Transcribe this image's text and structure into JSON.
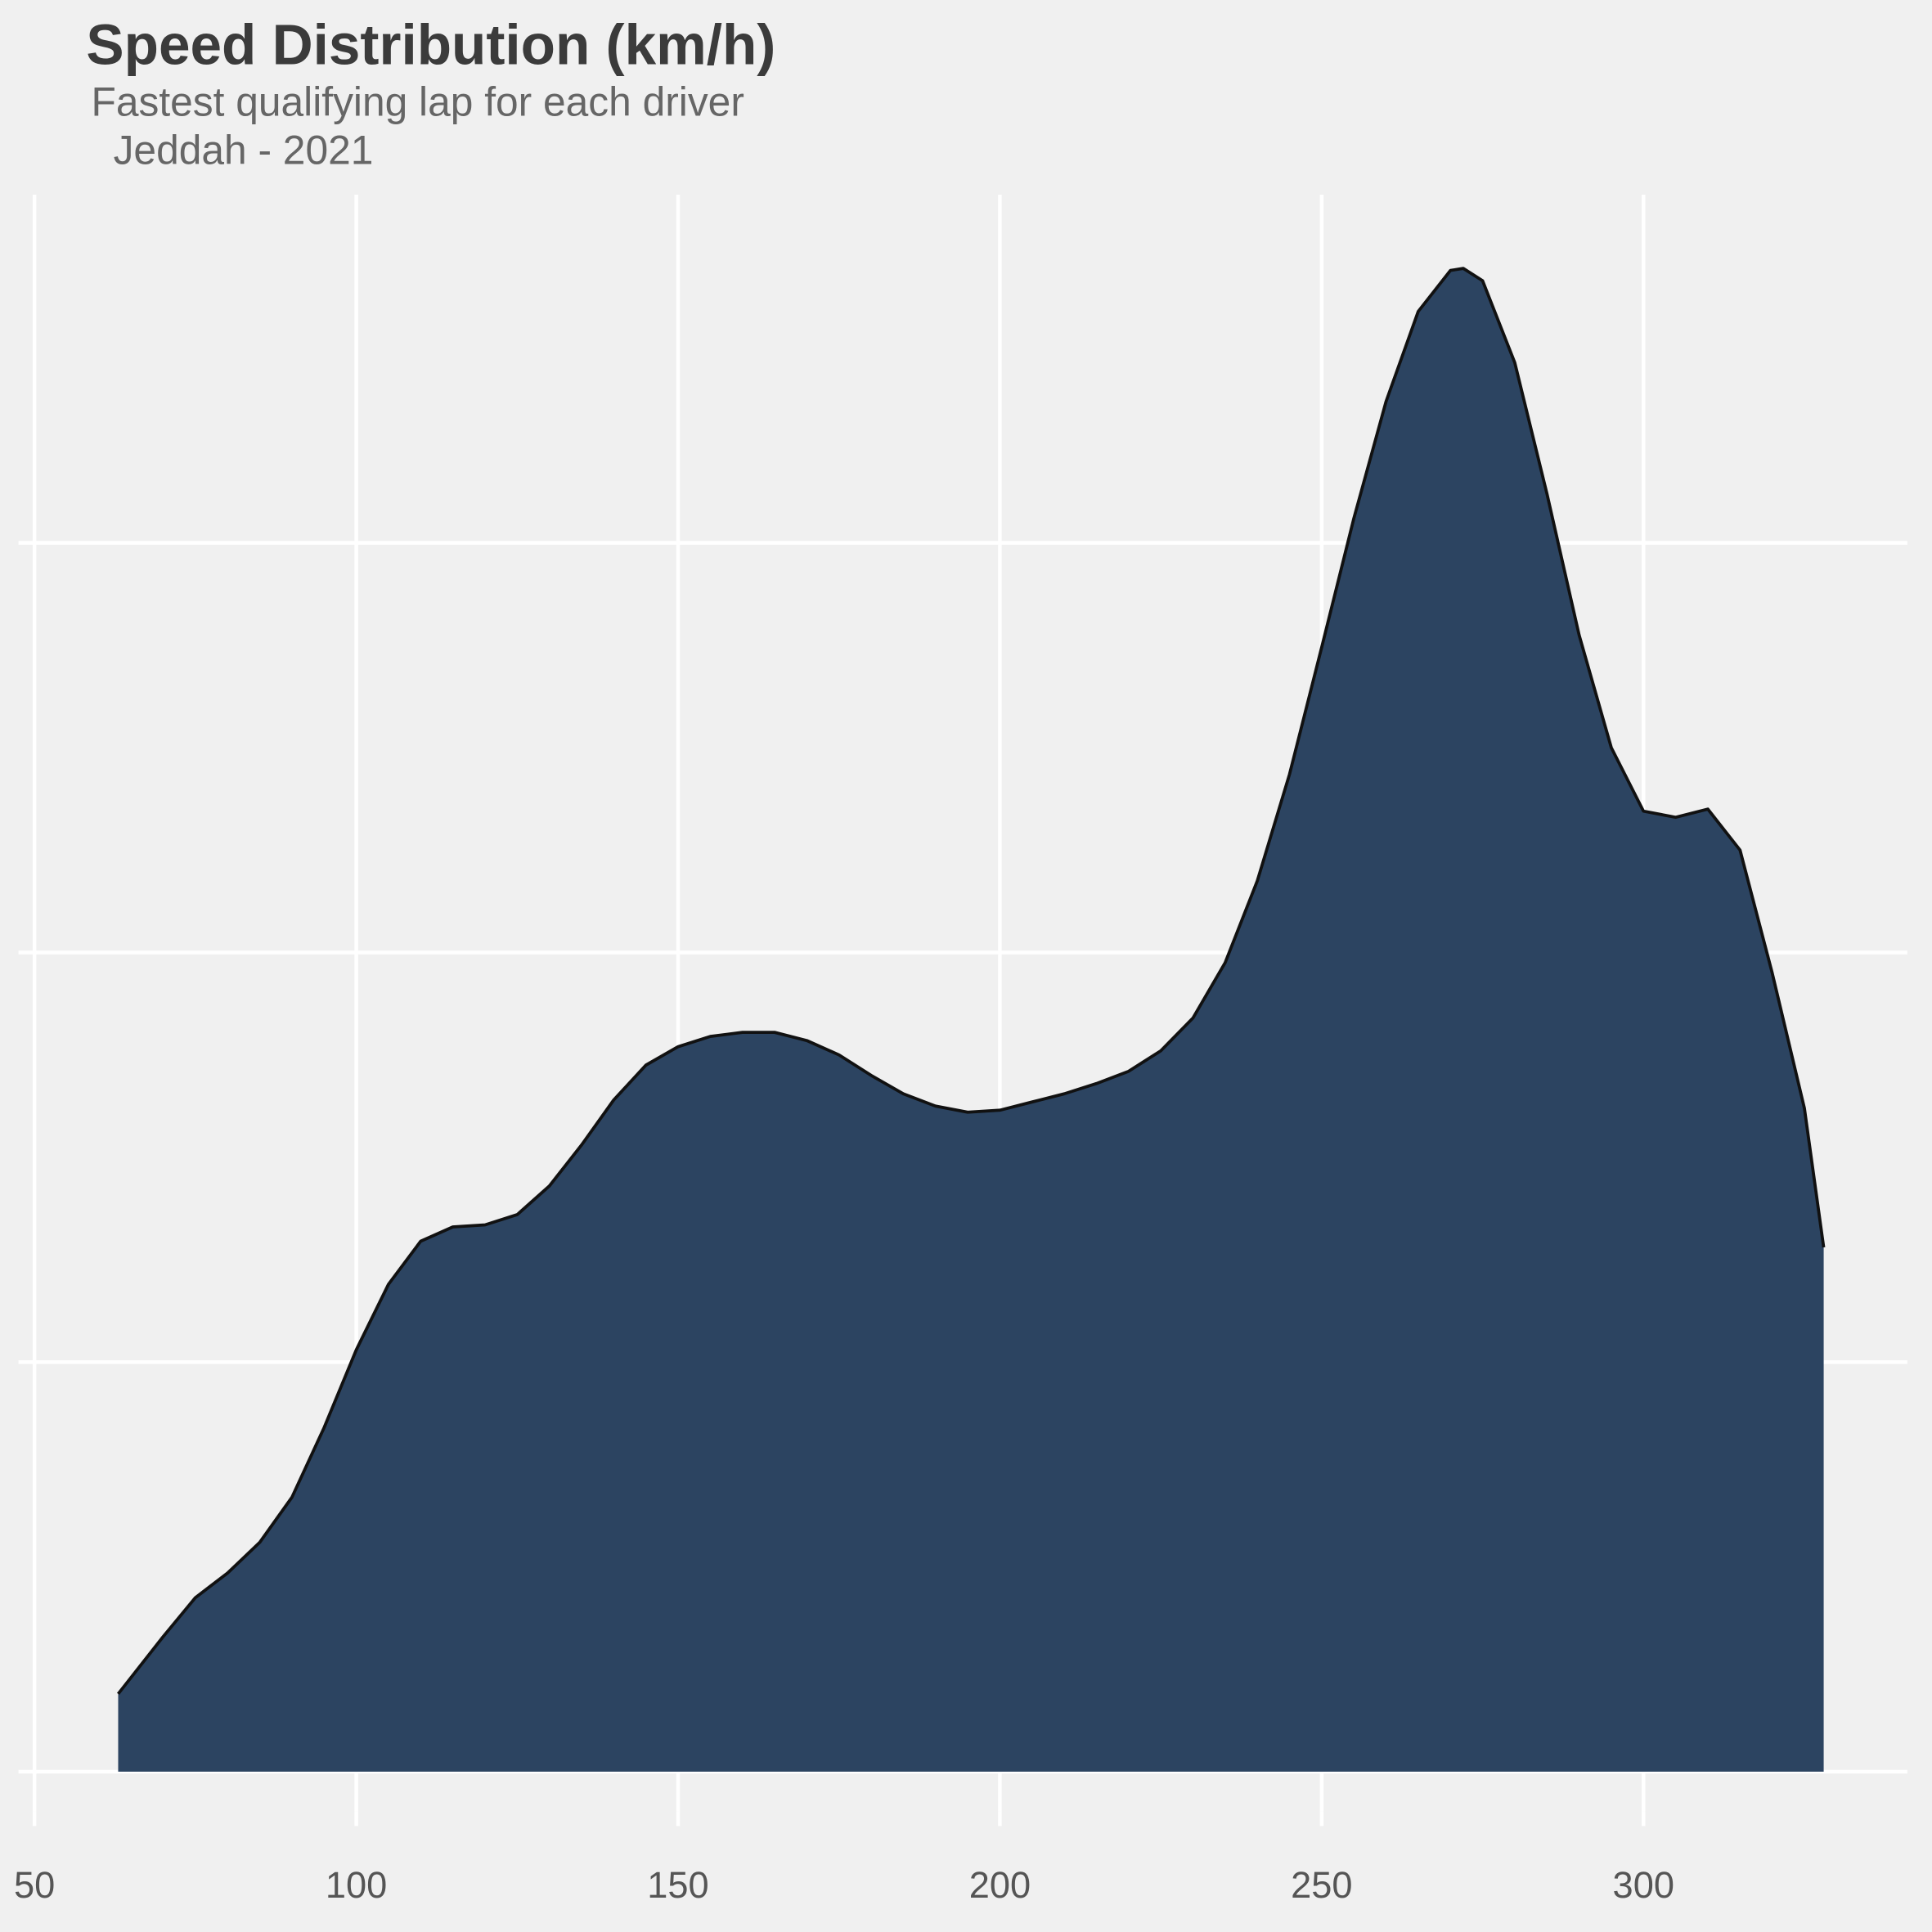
{
  "chart_data": {
    "type": "area",
    "title": "Speed Distribution (km/h)",
    "subtitle": [
      "Fastest qualifying lap for each driver",
      "Jeddah - 2021"
    ],
    "x": [
      63,
      70,
      75,
      80,
      85,
      90,
      95,
      100,
      105,
      110,
      115,
      120,
      125,
      130,
      135,
      140,
      145,
      150,
      155,
      160,
      165,
      170,
      175,
      180,
      185,
      190,
      195,
      200,
      205,
      210,
      215,
      220,
      225,
      230,
      235,
      240,
      245,
      250,
      255,
      260,
      265,
      270,
      272,
      275,
      280,
      285,
      290,
      295,
      300,
      305,
      310,
      315,
      320,
      325,
      328
    ],
    "series": [
      {
        "color": "#2c4461",
        "values": [
          0.00038,
          0.00066,
          0.00085,
          0.00097,
          0.00112,
          0.00134,
          0.00168,
          0.00206,
          0.00238,
          0.00259,
          0.00266,
          0.00267,
          0.00272,
          0.00286,
          0.00306,
          0.00328,
          0.00345,
          0.00354,
          0.00359,
          0.00361,
          0.00361,
          0.00357,
          0.0035,
          0.0034,
          0.00331,
          0.00325,
          0.00322,
          0.00323,
          0.00327,
          0.00331,
          0.00336,
          0.00342,
          0.00352,
          0.00368,
          0.00395,
          0.00435,
          0.00487,
          0.00549,
          0.00612,
          0.00669,
          0.00713,
          0.00733,
          0.00734,
          0.00728,
          0.00688,
          0.00624,
          0.00555,
          0.005,
          0.00469,
          0.00466,
          0.0047,
          0.0045,
          0.0039,
          0.00324,
          0.00256
        ]
      }
    ],
    "xlim": [
      50,
      341
    ],
    "xticks": [
      50,
      100,
      150,
      200,
      250,
      300
    ],
    "ylim": [
      -0.000193,
      0.0077
    ],
    "yticks": [
      0,
      0.002,
      0.004,
      0.006
    ],
    "grid": true
  }
}
